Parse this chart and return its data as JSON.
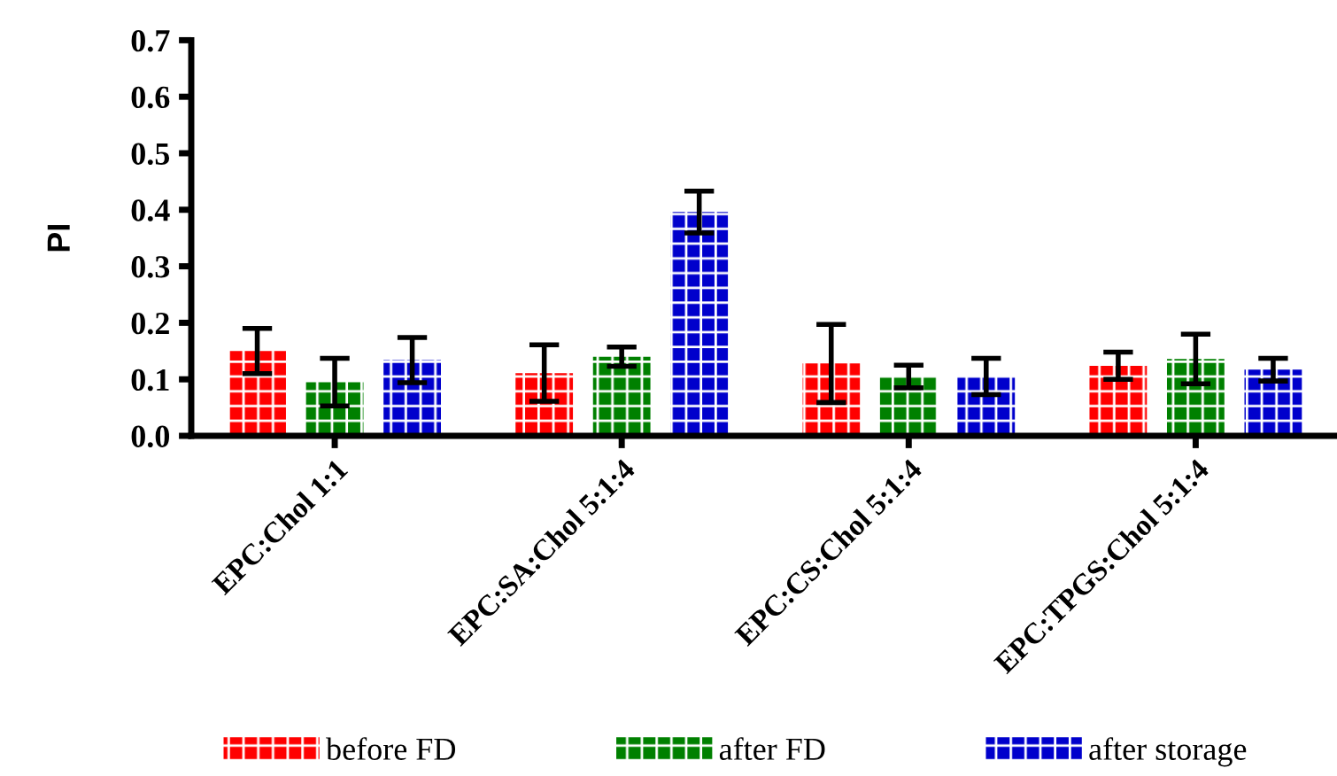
{
  "chart_data": {
    "type": "bar",
    "ylabel": "PI",
    "categories": [
      "EPC:Chol 1:1",
      "EPC:SA:Chol 5:1:4",
      "EPC:CS:Chol 5:1:4",
      "EPC:TPGS:Chol 5:1:4"
    ],
    "series": [
      {
        "name": "before FD",
        "color": "#ff0000",
        "values": [
          0.15,
          0.111,
          0.128,
          0.124
        ],
        "errors": [
          0.04,
          0.05,
          0.069,
          0.024
        ]
      },
      {
        "name": "after FD",
        "color": "#008000",
        "values": [
          0.095,
          0.14,
          0.105,
          0.136
        ],
        "errors": [
          0.042,
          0.017,
          0.02,
          0.044
        ]
      },
      {
        "name": "after storage",
        "color": "#0000cc",
        "values": [
          0.134,
          0.396,
          0.105,
          0.117
        ],
        "errors": [
          0.04,
          0.037,
          0.032,
          0.02
        ]
      }
    ],
    "ylim": [
      0,
      0.7
    ],
    "yticks": [
      "0.0",
      0.1,
      0.2,
      0.3,
      0.4,
      0.5,
      0.6,
      0.7
    ],
    "grid": false,
    "legend": "bottom"
  }
}
